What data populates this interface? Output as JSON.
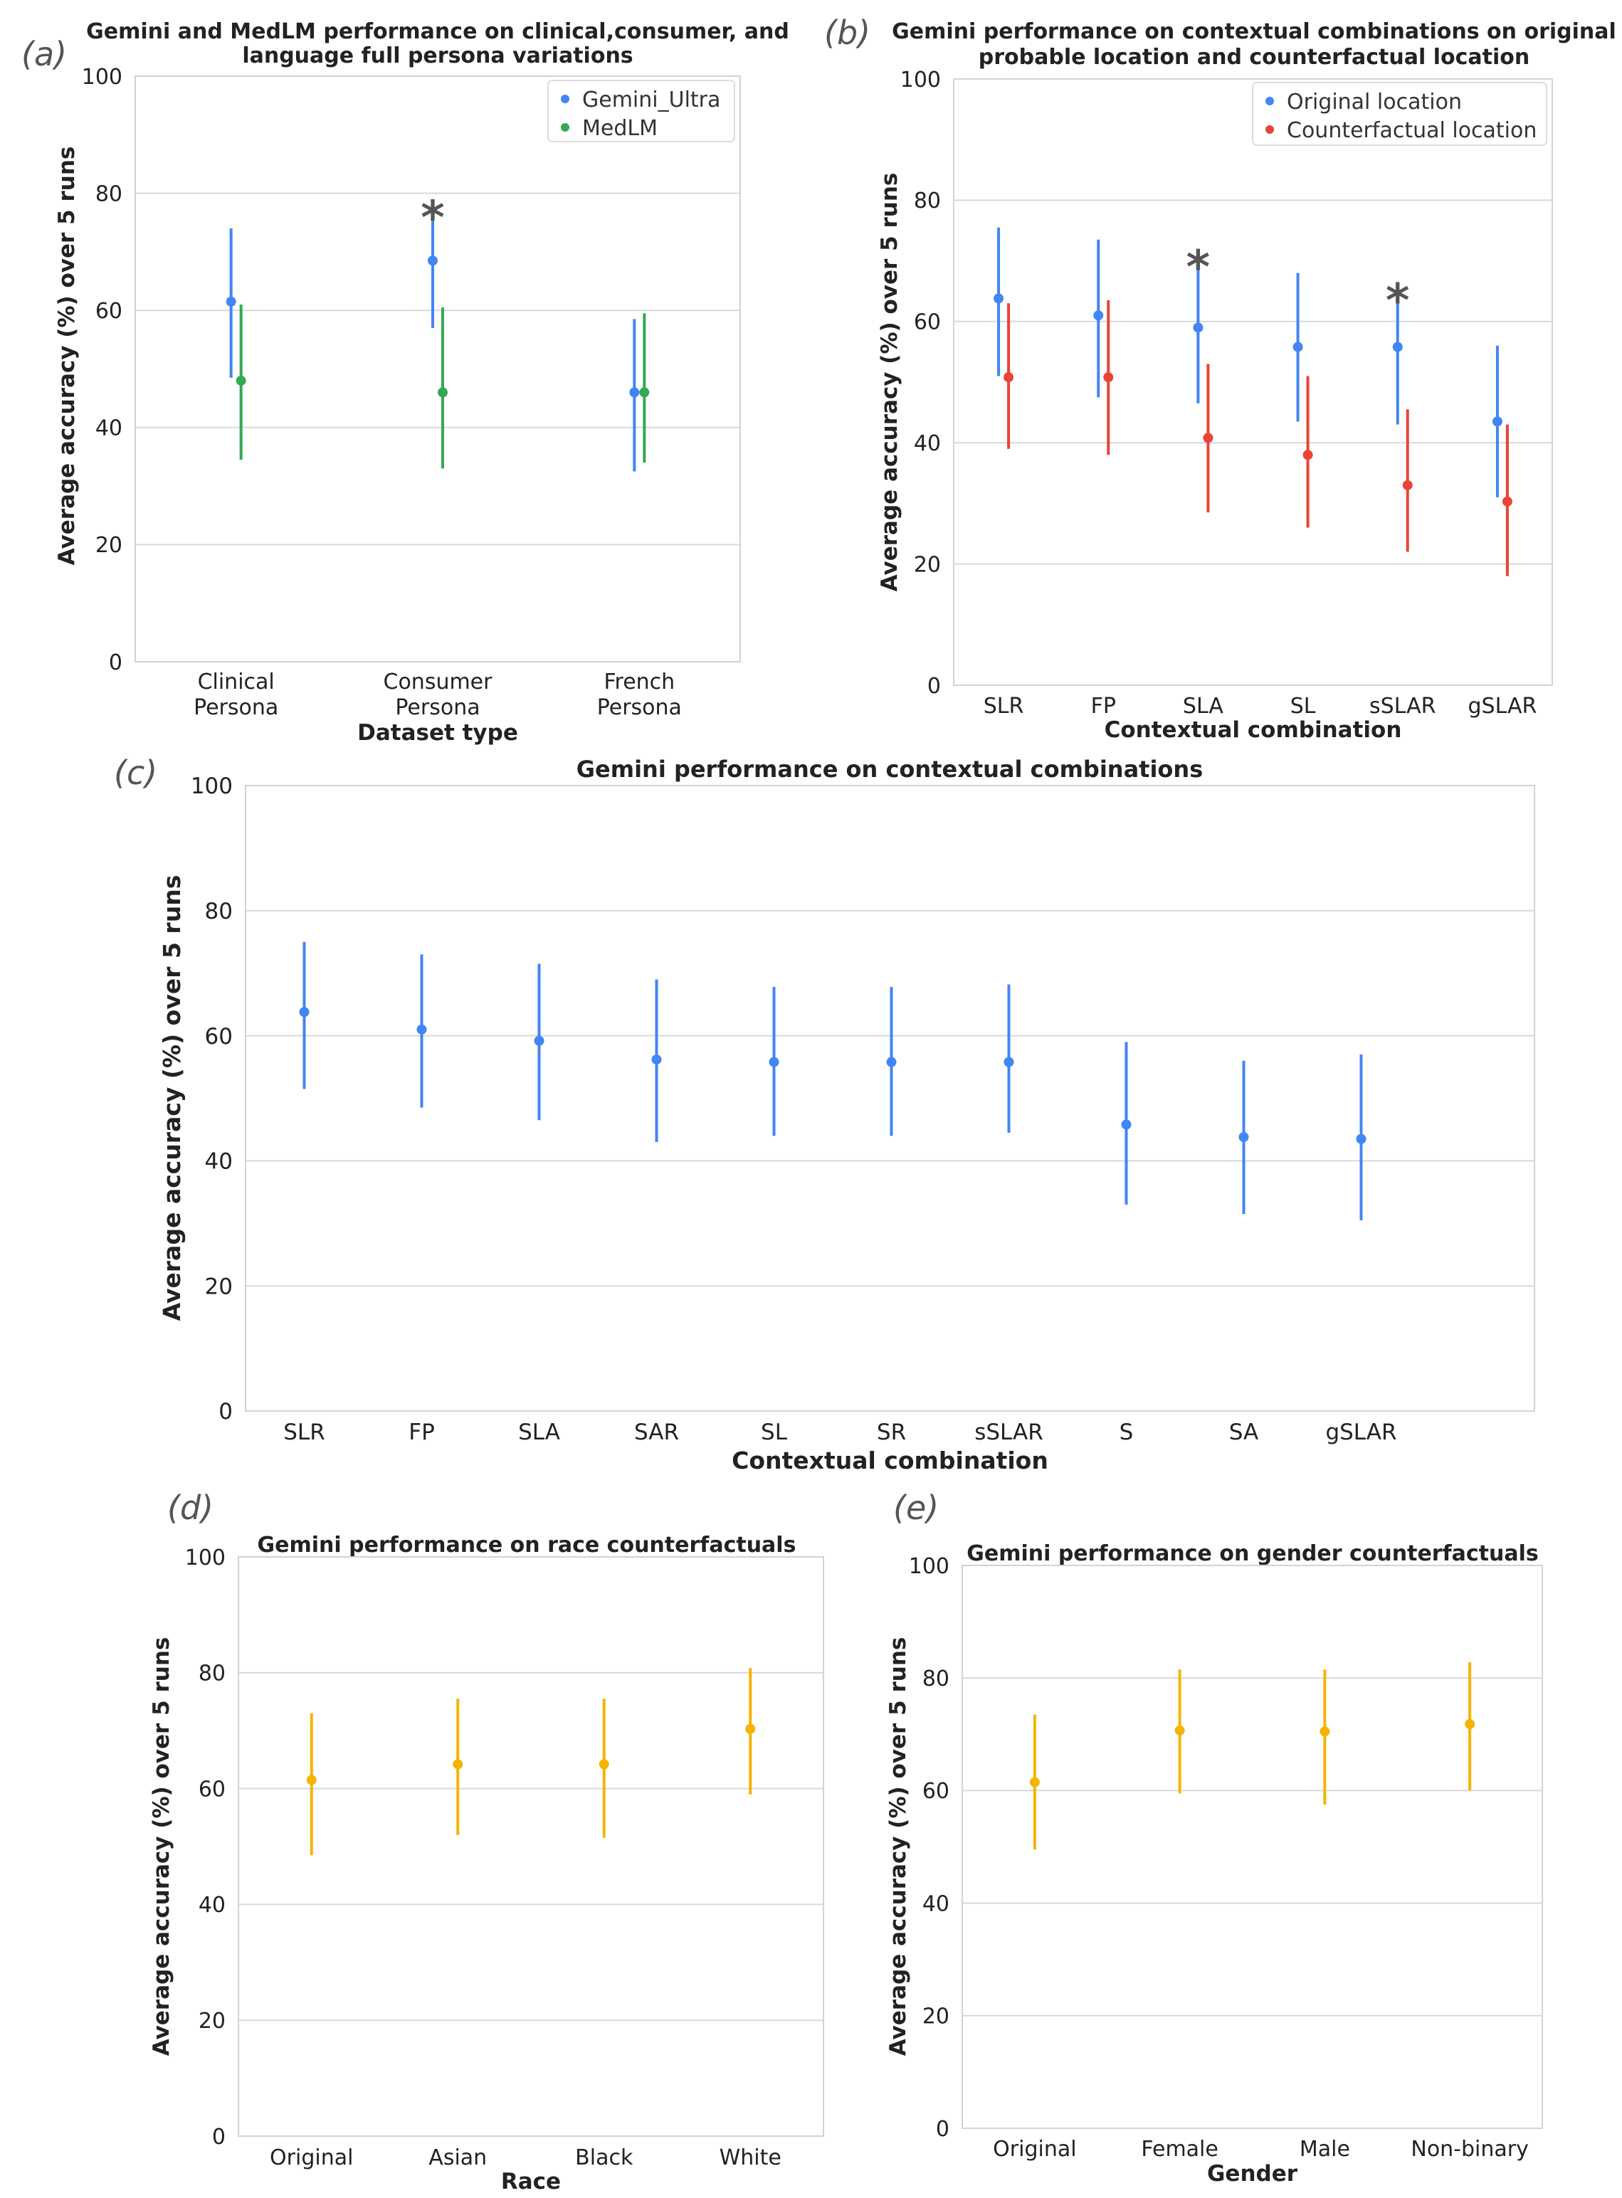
{
  "chart_data": [
    {
      "panel": "(a)",
      "type": "errorbar",
      "title": "Gemini and MedLM performance on clinical,consumer, and language full persona variations",
      "title_lines": [
        "Gemini and MedLM performance on clinical,consumer, and",
        "language full persona variations"
      ],
      "xlabel": "Dataset type",
      "ylabel": "Average accuracy (%) over 5 runs",
      "ylim": [
        0,
        100
      ],
      "yticks": [
        "0",
        "20",
        "40",
        "60",
        "80",
        "100"
      ],
      "categories": [
        "Clinical Persona",
        "Consumer Persona",
        "French Persona"
      ],
      "category_lines": [
        [
          "Clinical",
          "Persona"
        ],
        [
          "Consumer",
          "Persona"
        ],
        [
          "French",
          "Persona"
        ]
      ],
      "legend": "top-right",
      "series": [
        {
          "name": "Gemini_Ultra",
          "color": "#4285F4",
          "values": [
            61.5,
            68.5,
            46
          ],
          "lower": [
            48.5,
            57,
            32.5
          ],
          "upper": [
            74,
            79,
            58.5
          ]
        },
        {
          "name": "MedLM",
          "color": "#34A853",
          "values": [
            48,
            46,
            46
          ],
          "lower": [
            34.5,
            33,
            34
          ],
          "upper": [
            61,
            60.5,
            59.5
          ]
        }
      ],
      "annotations": [
        {
          "text": "*",
          "category": "Consumer Persona"
        }
      ]
    },
    {
      "panel": "(b)",
      "type": "errorbar",
      "title": "Gemini performance on contextual combinations on original probable location and counterfactual location",
      "title_lines": [
        "Gemini performance on contextual combinations on original",
        "probable location and counterfactual location"
      ],
      "xlabel": "Contextual combination",
      "ylabel": "Average accuracy (%) over 5 runs",
      "ylim": [
        0,
        100
      ],
      "yticks": [
        "0",
        "20",
        "40",
        "60",
        "80",
        "100"
      ],
      "categories": [
        "SLR",
        "FP",
        "SLA",
        "SL",
        "sSLAR",
        "gSLAR"
      ],
      "legend": "top-right",
      "series": [
        {
          "name": "Original location",
          "color": "#4285F4",
          "values": [
            63.8,
            61,
            59,
            55.8,
            55.8,
            43.5
          ],
          "lower": [
            51,
            47.5,
            46.5,
            43.5,
            43,
            31
          ],
          "upper": [
            75.5,
            73.5,
            72,
            68,
            66.5,
            56
          ]
        },
        {
          "name": "Counterfactual location",
          "color": "#EA4335",
          "values": [
            50.8,
            50.8,
            40.8,
            38,
            33,
            30.3
          ],
          "lower": [
            39,
            38,
            28.5,
            26,
            22,
            18
          ],
          "upper": [
            63,
            63.5,
            53,
            51,
            45.5,
            43
          ]
        }
      ],
      "annotations": [
        {
          "text": "*",
          "category": "SLA"
        },
        {
          "text": "*",
          "category": "sSLAR"
        }
      ]
    },
    {
      "panel": "(c)",
      "type": "errorbar",
      "title": "Gemini performance on contextual combinations",
      "xlabel": "Contextual combination",
      "ylabel": "Average accuracy (%) over 5 runs",
      "ylim": [
        0,
        100
      ],
      "yticks": [
        "0",
        "20",
        "40",
        "60",
        "80",
        "100"
      ],
      "categories": [
        "SLR",
        "FP",
        "SLA",
        "SAR",
        "SL",
        "SR",
        "sSLAR",
        "S",
        "SA",
        "gSLAR"
      ],
      "series": [
        {
          "name": "Gemini",
          "color": "#4285F4",
          "values": [
            63.8,
            61,
            59.2,
            56.2,
            55.8,
            55.8,
            55.8,
            45.8,
            43.8,
            43.5
          ],
          "lower": [
            51.5,
            48.5,
            46.5,
            43,
            44,
            44,
            44.5,
            33,
            31.5,
            30.5
          ],
          "upper": [
            75,
            73,
            71.5,
            69,
            67.8,
            67.8,
            68.2,
            59,
            56,
            57
          ]
        }
      ]
    },
    {
      "panel": "(d)",
      "type": "errorbar",
      "title": "Gemini performance on race counterfactuals",
      "xlabel": "Race",
      "ylabel": "Average accuracy (%) over 5 runs",
      "ylim": [
        0,
        100
      ],
      "yticks": [
        "0",
        "20",
        "40",
        "60",
        "80",
        "100"
      ],
      "categories": [
        "Original",
        "Asian",
        "Black",
        "White"
      ],
      "series": [
        {
          "name": "Gemini",
          "color": "#F4B400",
          "values": [
            61.5,
            64.2,
            64.2,
            70.3
          ],
          "lower": [
            48.5,
            52,
            51.5,
            59
          ],
          "upper": [
            73,
            75.5,
            75.5,
            80.8
          ]
        }
      ]
    },
    {
      "panel": "(e)",
      "type": "errorbar",
      "title": "Gemini performance on gender counterfactuals",
      "xlabel": "Gender",
      "ylabel": "Average accuracy (%) over 5 runs",
      "ylim": [
        0,
        100
      ],
      "yticks": [
        "0",
        "20",
        "40",
        "60",
        "80",
        "100"
      ],
      "categories": [
        "Original",
        "Female",
        "Male",
        "Non-binary"
      ],
      "series": [
        {
          "name": "Gemini",
          "color": "#F4B400",
          "values": [
            61.5,
            70.7,
            70.5,
            71.8
          ],
          "lower": [
            49.5,
            59.5,
            57.5,
            60
          ],
          "upper": [
            73.5,
            81.5,
            81.5,
            82.8
          ]
        }
      ]
    }
  ]
}
